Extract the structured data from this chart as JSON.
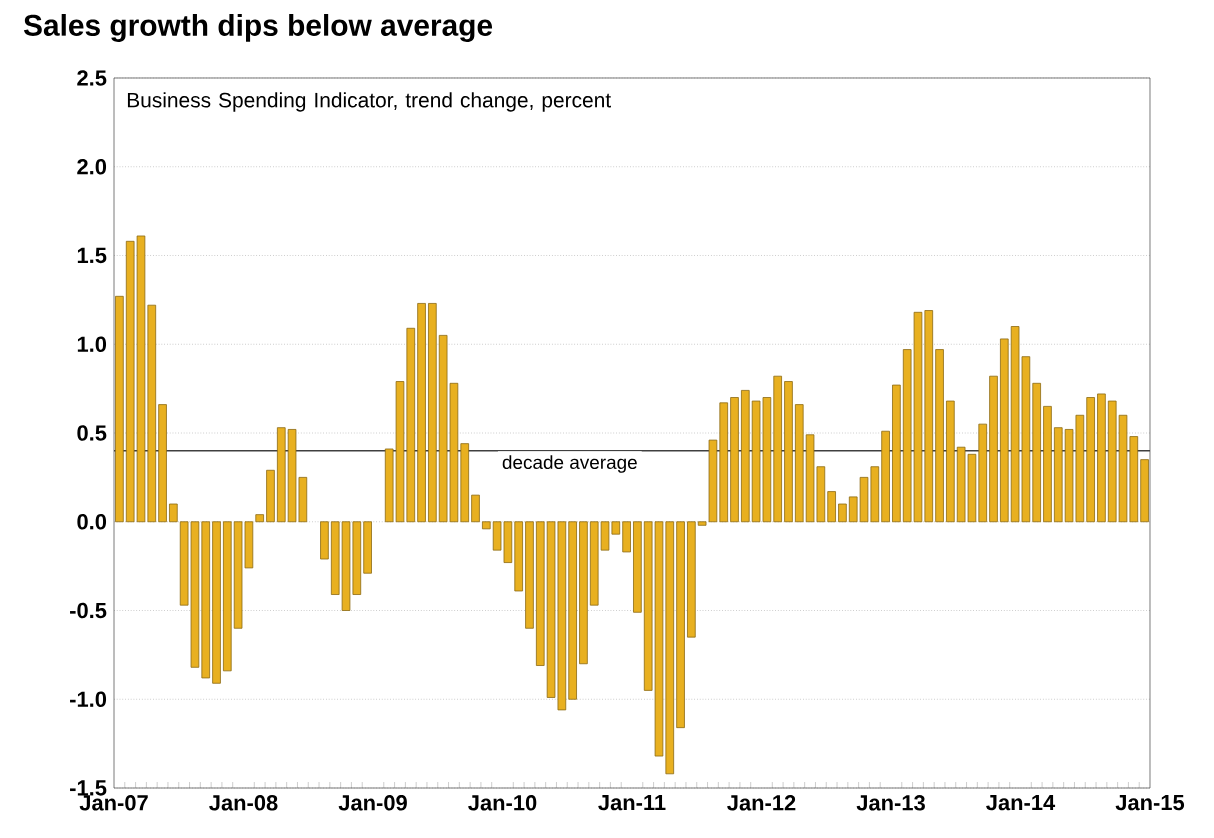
{
  "chart_data": {
    "type": "bar",
    "title": "Sales growth dips below average",
    "subtitle": "Business Spending Indicator, trend change, percent",
    "x": [
      "2007-01",
      "2007-02",
      "2007-03",
      "2007-04",
      "2007-05",
      "2007-06",
      "2007-07",
      "2007-08",
      "2007-09",
      "2007-10",
      "2007-11",
      "2007-12",
      "2008-01",
      "2008-02",
      "2008-03",
      "2008-04",
      "2008-05",
      "2008-06",
      "2008-07",
      "2008-08",
      "2008-09",
      "2008-10",
      "2008-11",
      "2008-12",
      "2009-01",
      "2009-02",
      "2009-03",
      "2009-04",
      "2009-05",
      "2009-06",
      "2009-07",
      "2009-08",
      "2009-09",
      "2009-10",
      "2009-11",
      "2009-12",
      "2010-01",
      "2010-02",
      "2010-03",
      "2010-04",
      "2010-05",
      "2010-06",
      "2010-07",
      "2010-08",
      "2010-09",
      "2010-10",
      "2010-11",
      "2010-12",
      "2011-01",
      "2011-02",
      "2011-03",
      "2011-04",
      "2011-05",
      "2011-06",
      "2011-07",
      "2011-08",
      "2011-09",
      "2011-10",
      "2011-11",
      "2011-12",
      "2012-01",
      "2012-02",
      "2012-03",
      "2012-04",
      "2012-05",
      "2012-06",
      "2012-07",
      "2012-08",
      "2012-09",
      "2012-10",
      "2012-11",
      "2012-12",
      "2013-01",
      "2013-02",
      "2013-03",
      "2013-04",
      "2013-05",
      "2013-06",
      "2013-07",
      "2013-08",
      "2013-09",
      "2013-10",
      "2013-11",
      "2013-12",
      "2014-01",
      "2014-02",
      "2014-03",
      "2014-04",
      "2014-05",
      "2014-06",
      "2014-07",
      "2014-08",
      "2014-09",
      "2014-10",
      "2014-11",
      "2014-12"
    ],
    "values": [
      1.27,
      1.58,
      1.61,
      1.22,
      0.66,
      0.1,
      -0.47,
      -0.82,
      -0.88,
      -0.91,
      -0.84,
      -0.6,
      -0.26,
      0.04,
      0.29,
      0.53,
      0.52,
      0.25,
      null,
      -0.21,
      -0.41,
      -0.5,
      -0.41,
      -0.29,
      null,
      0.41,
      0.79,
      1.09,
      1.23,
      1.23,
      1.05,
      0.78,
      0.44,
      0.15,
      -0.04,
      -0.16,
      -0.23,
      -0.39,
      -0.6,
      -0.81,
      -0.99,
      -1.06,
      -1.0,
      -0.8,
      -0.47,
      -0.16,
      -0.07,
      -0.17,
      -0.51,
      -0.95,
      -1.32,
      -1.42,
      -1.16,
      -0.65,
      -0.02,
      0.46,
      0.67,
      0.7,
      0.74,
      0.68,
      0.7,
      0.82,
      0.79,
      0.66,
      0.49,
      0.31,
      0.17,
      0.1,
      0.14,
      0.25,
      0.31,
      0.51,
      0.77,
      0.97,
      1.18,
      1.19,
      0.97,
      0.68,
      0.42,
      0.38,
      0.55,
      0.82,
      1.03,
      1.1,
      0.93,
      0.78,
      0.65,
      0.53,
      0.52,
      0.6,
      0.7,
      0.72,
      0.68,
      0.6,
      0.48,
      0.35
    ],
    "color": "#e8b020",
    "xlim": [
      "2007-01",
      "2015-01"
    ],
    "xticks": [
      {
        "value": "2007-01",
        "label": "Jan-07"
      },
      {
        "value": "2008-01",
        "label": "Jan-08"
      },
      {
        "value": "2009-01",
        "label": "Jan-09"
      },
      {
        "value": "2010-01",
        "label": "Jan-10"
      },
      {
        "value": "2011-01",
        "label": "Jan-11"
      },
      {
        "value": "2012-01",
        "label": "Jan-12"
      },
      {
        "value": "2013-01",
        "label": "Jan-13"
      },
      {
        "value": "2014-01",
        "label": "Jan-14"
      },
      {
        "value": "2015-01",
        "label": "Jan-15"
      }
    ],
    "ylim": [
      -1.5,
      2.5
    ],
    "yticks": [
      -1.5,
      {
        "value": -1,
        "label": "-1.0"
      },
      -0.5,
      {
        "value": 0,
        "label": "0.0"
      },
      0.5,
      {
        "value": 1,
        "label": "1.0"
      },
      1.5,
      {
        "value": 2,
        "label": "2.0"
      },
      2.5
    ],
    "ref_lines": [
      {
        "axis": "y",
        "value": 0.4,
        "label": "decade average",
        "color": "#404040"
      }
    ],
    "grid": "y"
  }
}
